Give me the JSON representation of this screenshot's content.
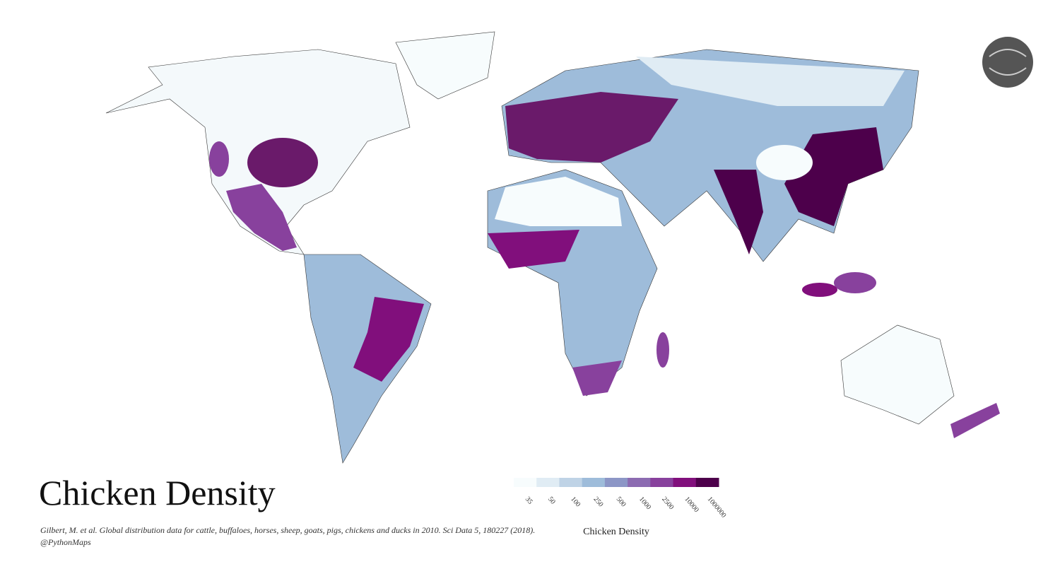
{
  "title": "Chicken Density",
  "citation": "Gilbert, M. et al. Global distribution data for cattle, buffaloes, horses, sheep, goats, pigs, chickens and ducks in 2010. Sci Data 5, 180227 (2018).",
  "handle": "@PythonMaps",
  "legend": {
    "title": "Chicken Density",
    "colors": [
      "#f7fcfd",
      "#e0ecf4",
      "#bfd3e6",
      "#9ebcda",
      "#8c96c6",
      "#8c6bb1",
      "#88419d",
      "#810f7c",
      "#4d004b"
    ],
    "ticks": [
      35,
      50,
      100,
      250,
      500,
      1000,
      2500,
      10000,
      1000000
    ]
  }
}
